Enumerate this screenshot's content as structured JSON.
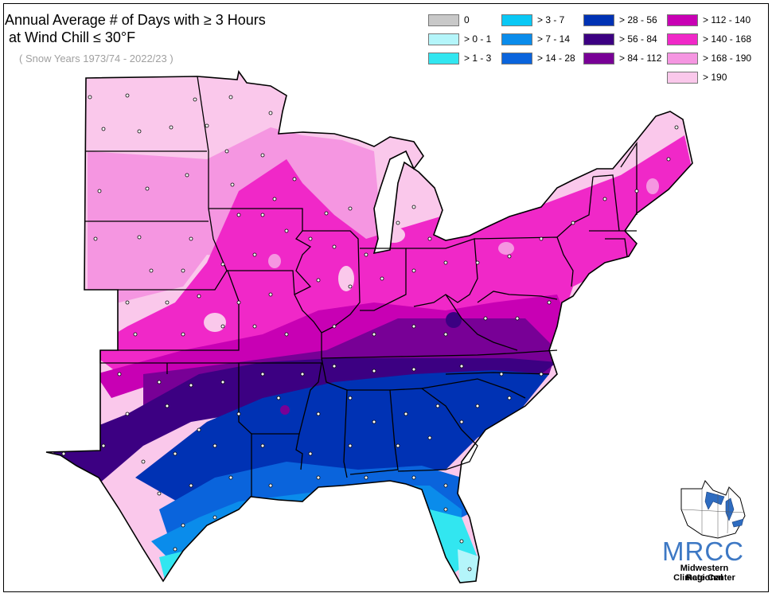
{
  "title_line1": "Annual Average # of Days with ≥ 3 Hours",
  "title_line2": " at Wind Chill ≤ 30°F",
  "subtitle": "( Snow Years 1973/74 - 2022/23 )",
  "legend": [
    {
      "label": "0",
      "color": "#c8c8c8"
    },
    {
      "label": "> 0 - 1",
      "color": "#b4f5fa"
    },
    {
      "label": "> 1 - 3",
      "color": "#32e6f0"
    },
    {
      "label": "> 3 - 7",
      "color": "#0ac8f5"
    },
    {
      "label": "> 7 - 14",
      "color": "#0a8ceb"
    },
    {
      "label": "> 14 - 28",
      "color": "#0a64dc"
    },
    {
      "label": "> 28 - 56",
      "color": "#0032b4"
    },
    {
      "label": "> 56 - 84",
      "color": "#3c0082"
    },
    {
      "label": "> 84 - 112",
      "color": "#780096"
    },
    {
      "label": "> 112 - 140",
      "color": "#c800b4"
    },
    {
      "label": "> 140 - 168",
      "color": "#f028c8"
    },
    {
      "label": "> 168 - 190",
      "color": "#f596e1"
    },
    {
      "label": "> 190",
      "color": "#fac8eb"
    }
  ],
  "logo": {
    "mark": "MRCC",
    "line1": "Midwestern Regional",
    "line2": "Climate Center"
  }
}
